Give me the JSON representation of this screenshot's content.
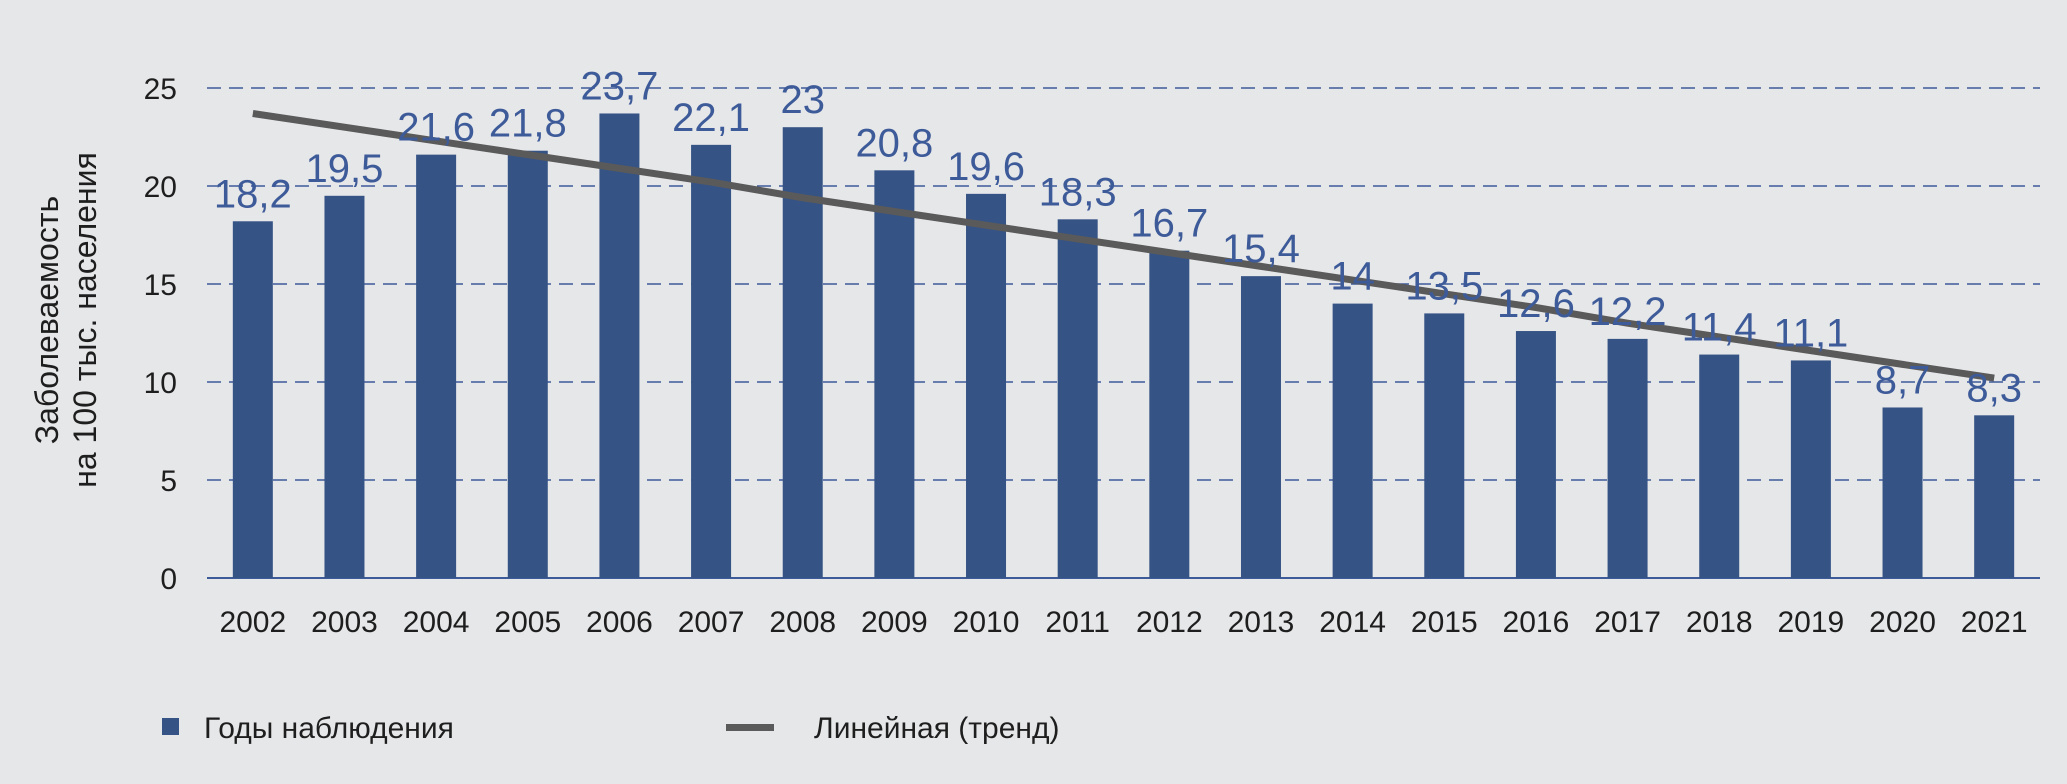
{
  "chart_data": {
    "type": "bar",
    "categories": [
      "2002",
      "2003",
      "2004",
      "2005",
      "2006",
      "2007",
      "2008",
      "2009",
      "2010",
      "2011",
      "2012",
      "2013",
      "2014",
      "2015",
      "2016",
      "2017",
      "2018",
      "2019",
      "2020",
      "2021"
    ],
    "series": [
      {
        "name": "Годы наблюдения",
        "type": "bar",
        "values": [
          18.2,
          19.5,
          21.6,
          21.8,
          23.7,
          22.1,
          23,
          20.8,
          19.6,
          18.3,
          16.7,
          15.4,
          14,
          13.5,
          12.6,
          12.2,
          11.4,
          11.1,
          8.7,
          8.3
        ],
        "labels": [
          "18,2",
          "19,5",
          "21,6",
          "21,8",
          "23,7",
          "22,1",
          "23",
          "20,8",
          "19,6",
          "18,3",
          "16,7",
          "15,4",
          "14",
          "13,5",
          "12,6",
          "12,2",
          "11,4",
          "11,1",
          "8,7",
          "8,3"
        ]
      },
      {
        "name": "Линейная (тренд)",
        "type": "line",
        "values": [
          23.7,
          23.0,
          22.3,
          21.6,
          20.9,
          20.2,
          19.4,
          18.7,
          18.0,
          17.3,
          16.6,
          15.9,
          15.2,
          14.5,
          13.8,
          13.0,
          12.3,
          11.6,
          10.9,
          10.2
        ]
      }
    ],
    "yticks": [
      "0",
      "5",
      "10",
      "15",
      "20",
      "25"
    ],
    "ylim": [
      0,
      25
    ],
    "ylabel_line1": "Заболеваемость",
    "ylabel_line2": "на 100 тыс. населения",
    "title": "",
    "xlabel": "",
    "grid": "horizontal dashed",
    "legend_position": "bottom-left",
    "colors": {
      "bar": "#355385",
      "trend": "#5a5a5a",
      "grid": "#3d5a99",
      "data_label": "#3d5a99",
      "background": "#e6e7e9"
    }
  }
}
